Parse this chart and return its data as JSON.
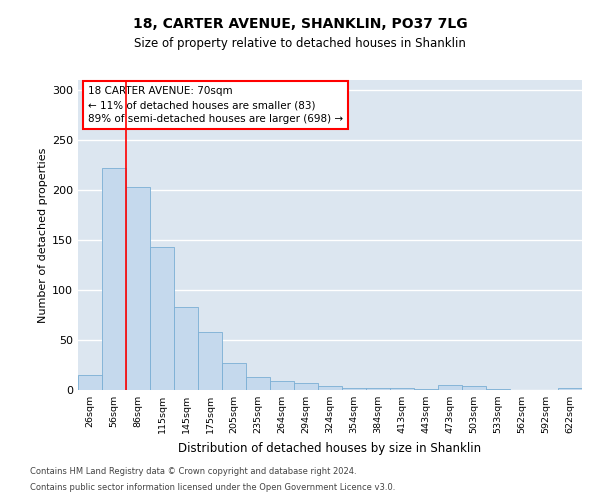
{
  "title": "18, CARTER AVENUE, SHANKLIN, PO37 7LG",
  "subtitle": "Size of property relative to detached houses in Shanklin",
  "xlabel": "Distribution of detached houses by size in Shanklin",
  "ylabel": "Number of detached properties",
  "bar_color": "#c5d9ed",
  "bar_edge_color": "#7aaed4",
  "background_color": "#dce6f0",
  "categories": [
    "26sqm",
    "56sqm",
    "86sqm",
    "115sqm",
    "145sqm",
    "175sqm",
    "205sqm",
    "235sqm",
    "264sqm",
    "294sqm",
    "324sqm",
    "354sqm",
    "384sqm",
    "413sqm",
    "443sqm",
    "473sqm",
    "503sqm",
    "533sqm",
    "562sqm",
    "592sqm",
    "622sqm"
  ],
  "values": [
    15,
    222,
    203,
    143,
    83,
    58,
    27,
    13,
    9,
    7,
    4,
    2,
    2,
    2,
    1,
    5,
    4,
    1,
    0,
    0,
    2
  ],
  "ylim": [
    0,
    310
  ],
  "yticks": [
    0,
    50,
    100,
    150,
    200,
    250,
    300
  ],
  "property_label": "18 CARTER AVENUE: 70sqm",
  "annotation_line1": "← 11% of detached houses are smaller (83)",
  "annotation_line2": "89% of semi-detached houses are larger (698) →",
  "red_line_x": 1.5,
  "footnote1": "Contains HM Land Registry data © Crown copyright and database right 2024.",
  "footnote2": "Contains public sector information licensed under the Open Government Licence v3.0."
}
